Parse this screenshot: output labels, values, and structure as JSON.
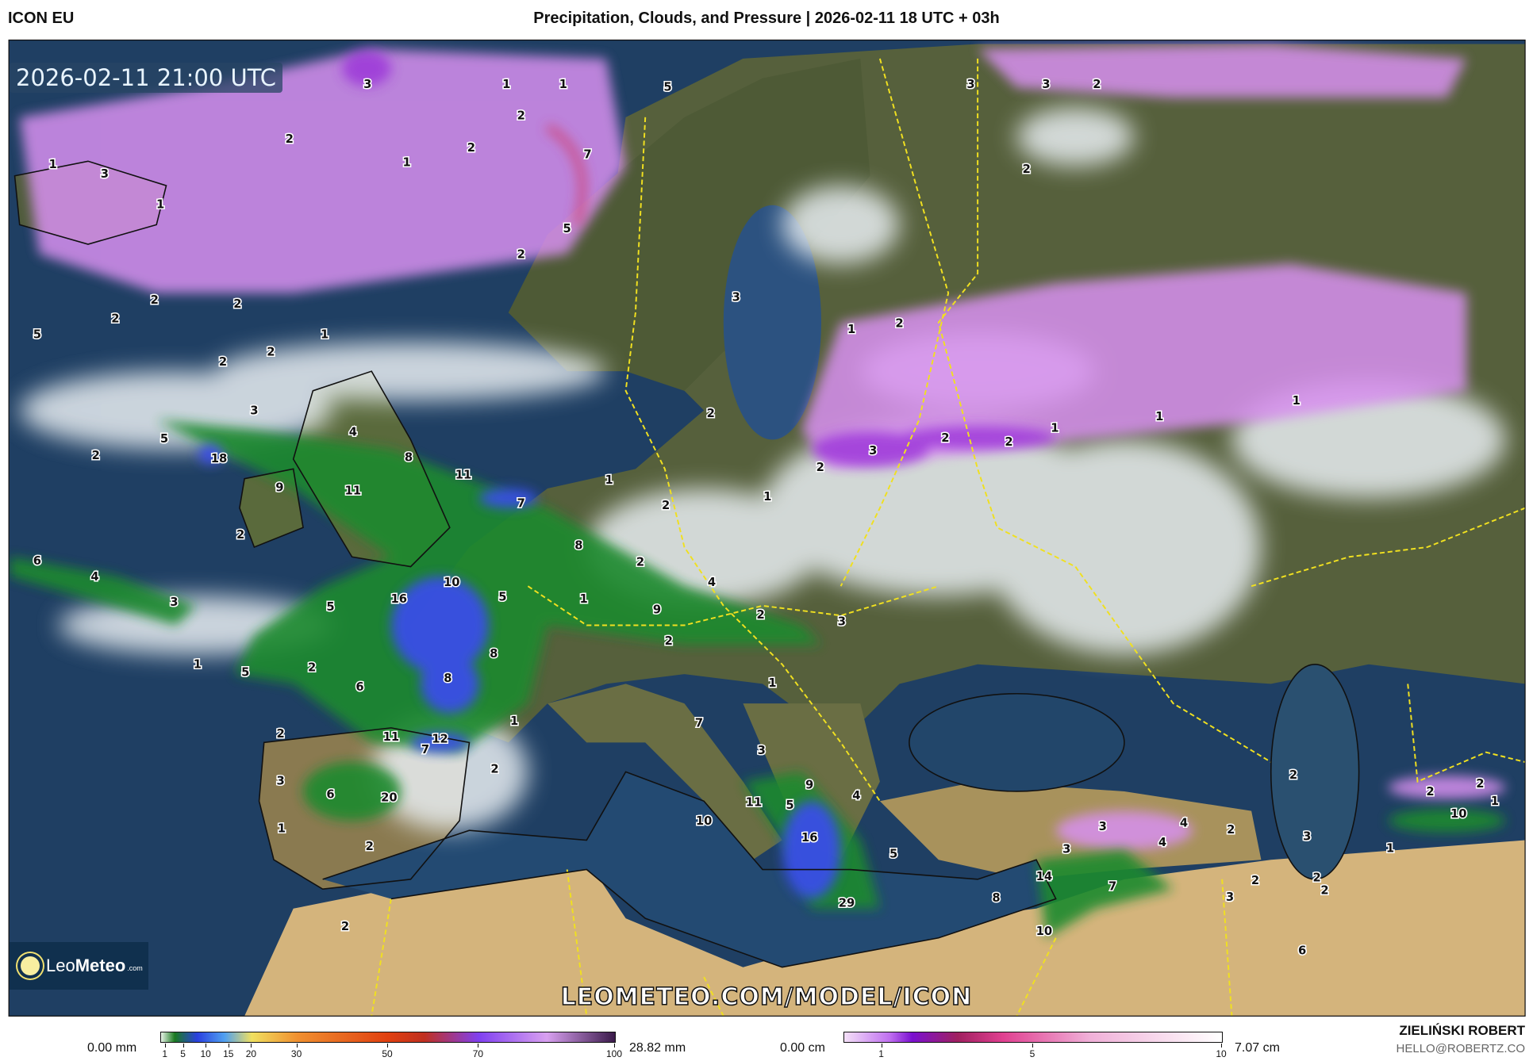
{
  "header": {
    "model": "ICON EU",
    "title": "Precipitation, Clouds, and Pressure | 2026-02-11 18 UTC + 03h"
  },
  "map": {
    "valid_time": "2026-02-11 21:00 UTC",
    "watermark": "LEOMETEO.COM/MODEL/ICON",
    "logo": {
      "name": "Leo",
      "name_bold": "Meteo",
      "suffix": ".com"
    },
    "labels": [
      "3",
      "1",
      "1",
      "5",
      "2",
      "2",
      "1",
      "2",
      "7",
      "1",
      "3",
      "1",
      "5",
      "2",
      "2",
      "2",
      "2",
      "1",
      "5",
      "2",
      "2",
      "3",
      "1",
      "2",
      "3",
      "3",
      "2",
      "2",
      "3",
      "4",
      "5",
      "18",
      "2",
      "8",
      "11",
      "9",
      "11",
      "7",
      "2",
      "1",
      "2",
      "1",
      "3",
      "2",
      "2",
      "1",
      "1",
      "1",
      "2",
      "2",
      "6",
      "4",
      "8",
      "2",
      "3",
      "16",
      "10",
      "5",
      "1",
      "4",
      "9",
      "2",
      "3",
      "2",
      "5",
      "8",
      "1",
      "5",
      "2",
      "6",
      "8",
      "1",
      "1",
      "2",
      "11",
      "12",
      "7",
      "7",
      "3",
      "2",
      "3",
      "6",
      "20",
      "9",
      "4",
      "11",
      "5",
      "10",
      "1",
      "16",
      "2",
      "5",
      "3",
      "4",
      "4",
      "2",
      "3",
      "2",
      "2",
      "2",
      "10",
      "1",
      "3",
      "1",
      "14",
      "7",
      "8",
      "3",
      "2",
      "2",
      "2",
      "29",
      "10",
      "2",
      "6"
    ]
  },
  "legend_precip": {
    "min_label": "0.00 mm",
    "max_label": "28.82 mm",
    "ticks": [
      "1",
      "5",
      "10",
      "15",
      "20",
      "30",
      "50",
      "70",
      "100"
    ],
    "tick_values": [
      1,
      5,
      10,
      15,
      20,
      30,
      50,
      70,
      100
    ]
  },
  "legend_snow": {
    "min_label": "0.00 cm",
    "max_label": "7.07 cm",
    "ticks": [
      "1",
      "5",
      "10"
    ],
    "tick_values": [
      1,
      5,
      10
    ]
  },
  "footer": {
    "author": "ZIELIŃSKI ROBERT",
    "email": "HELLO@ROBERTZ.CO"
  },
  "colors": {
    "ocean": "#1f3f63",
    "land": "#56603c",
    "desert": "#d4b47c",
    "border": "#f0e020",
    "rain": "#1a8a2e",
    "heavy_rain": "#3a4cf0",
    "snow": "#c070f0"
  }
}
